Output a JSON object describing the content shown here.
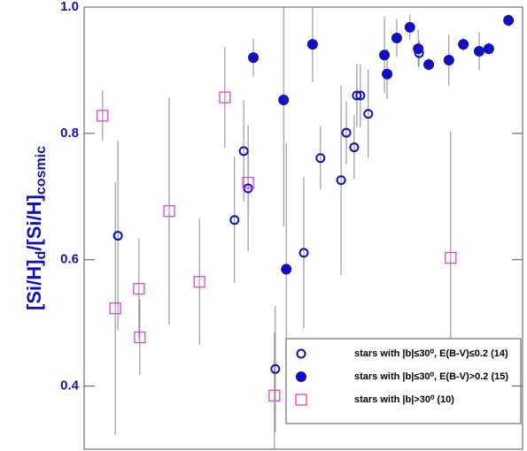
{
  "chart_data": {
    "type": "scatter",
    "ylabel_parts": [
      "[Si/H]",
      "d",
      "/[Si/H]",
      "cosmic"
    ],
    "xlim": [
      0,
      100
    ],
    "ylim": [
      0.3,
      1.0
    ],
    "yticks": [
      0.4,
      0.6,
      0.8,
      {
        "value": 1.0,
        "label": "1.0"
      }
    ],
    "errorbar_color": "#888888",
    "legend": "lower right",
    "series": [
      {
        "name": "stars with |b|≤30⁰, E(B-V)≤0.2 (14)",
        "marker": "open-circle",
        "color": "#1010c0",
        "x": [
          7.7,
          34.3,
          36.4,
          37.4,
          43.6,
          50.1,
          53.9,
          58.6,
          59.8,
          61.6,
          62.2,
          63.0,
          64.8,
          76.4
        ],
        "values": [
          0.638,
          0.663,
          0.772,
          0.713,
          0.427,
          0.611,
          0.761,
          0.726,
          0.801,
          0.778,
          0.86,
          0.86,
          0.831,
          0.927
        ],
        "errors": [
          0.15,
          0.1,
          0.08,
          0.1,
          0.1,
          0.12,
          0.05,
          0.15,
          0.05,
          0.05,
          0.05,
          0.05,
          0.07,
          0.02
        ]
      },
      {
        "name": "stars with |b|≤30⁰, E(B-V)>0.2 (15)",
        "marker": "filled-circle",
        "color": "#1010c0",
        "x": [
          38.6,
          45.5,
          46.1,
          52.1,
          68.5,
          69.1,
          71.3,
          74.3,
          76.2,
          78.6,
          83.2,
          86.5,
          90.1,
          92.3,
          96.8
        ],
        "values": [
          0.92,
          0.853,
          0.585,
          0.941,
          0.924,
          0.894,
          0.951,
          0.968,
          0.934,
          0.909,
          0.916,
          0.941,
          0.93,
          0.934,
          0.979
        ],
        "errors": [
          0.03,
          0.2,
          0.2,
          0.06,
          0.06,
          0.04,
          0.03,
          0.02,
          0.03,
          0.01,
          0.04,
          0.01,
          0.03,
          0.01,
          0.01
        ]
      },
      {
        "name": "stars with |b|>30⁰ (10)",
        "marker": "open-square",
        "color": "#e040e0",
        "x": [
          4.2,
          7.1,
          12.5,
          12.7,
          19.4,
          26.3,
          32.1,
          37.4,
          43.4,
          83.6
        ],
        "values": [
          0.828,
          0.523,
          0.554,
          0.477,
          0.677,
          0.565,
          0.857,
          0.722,
          0.385,
          0.603
        ],
        "errors": [
          0.04,
          0.2,
          0.08,
          0.06,
          0.18,
          0.1,
          0.08,
          0.05,
          0.1,
          0.2
        ]
      }
    ]
  }
}
